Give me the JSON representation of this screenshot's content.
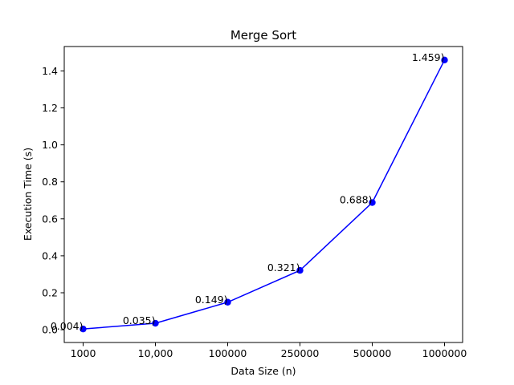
{
  "chart_data": {
    "type": "line",
    "title": "Merge Sort",
    "xlabel": "Data Size (n)",
    "ylabel": "Execution Time (s)",
    "categories": [
      "1000",
      "10,000",
      "100000",
      "250000",
      "500000",
      "1000000"
    ],
    "series": [
      {
        "values": [
          0.004,
          0.035,
          0.149,
          0.321,
          0.688,
          1.459
        ],
        "point_labels": [
          "0.004)",
          "0.035)",
          "0.149)",
          "0.321)",
          "0.688)",
          "1.459)"
        ],
        "color": "#0000ff",
        "marker": "circle"
      }
    ],
    "ylim": [
      -0.069,
      1.532
    ],
    "yticks": [
      0.0,
      0.2,
      0.4,
      0.6,
      0.8,
      1.0,
      1.2,
      1.4
    ],
    "ytick_labels": [
      "0.0",
      "0.2",
      "0.4",
      "0.6",
      "0.8",
      "1.0",
      "1.2",
      "1.4"
    ],
    "grid": false,
    "legend": "none"
  }
}
